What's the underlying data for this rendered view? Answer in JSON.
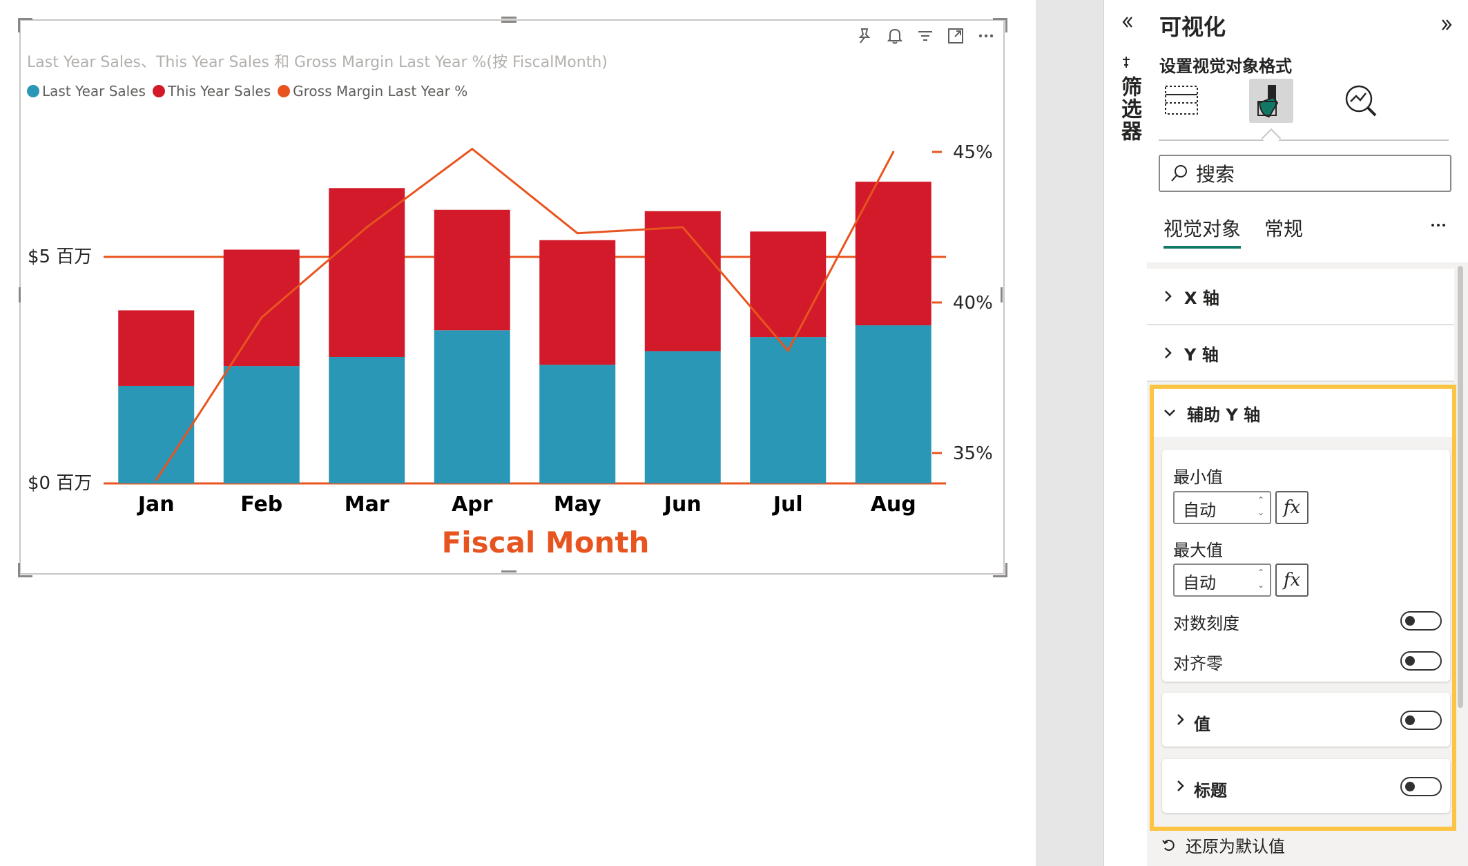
{
  "visual": {
    "title": "Last Year Sales、This Year Sales 和 Gross Margin Last Year %(按 FiscalMonth)",
    "header_icons": [
      "pin-icon",
      "bell-icon",
      "filter-icon",
      "focus-mode-icon",
      "more-options-icon"
    ],
    "legend": [
      {
        "label": "Last Year Sales",
        "color": "#2a97b6"
      },
      {
        "label": "This Year Sales",
        "color": "#d21a2a"
      },
      {
        "label": "Gross Margin Last Year %",
        "color": "#e8541f"
      }
    ]
  },
  "chart_data": {
    "type": "bar",
    "stacked": true,
    "categories": [
      "Jan",
      "Feb",
      "Mar",
      "Apr",
      "May",
      "Jun",
      "Jul",
      "Aug"
    ],
    "series": [
      {
        "name": "Last Year Sales",
        "values": [
          2.15,
          2.59,
          2.79,
          3.38,
          2.62,
          2.92,
          3.23,
          3.49
        ],
        "color": "#2a97b6"
      },
      {
        "name": "This Year Sales",
        "values": [
          1.67,
          2.57,
          3.73,
          2.66,
          2.75,
          3.09,
          2.33,
          3.17
        ],
        "color": "#d21a2a"
      }
    ],
    "line_series": [
      {
        "name": "Gross Margin Last Year %",
        "axis": "secondary",
        "values": [
          34.1,
          39.5,
          42.5,
          45.1,
          42.3,
          42.5,
          38.4,
          45.0
        ],
        "color": "#e8541f"
      }
    ],
    "xlabel": "Fiscal Month",
    "ylim": [
      0,
      8.75
    ],
    "y_ticks": [
      {
        "value": 0,
        "label": "$0 百万"
      },
      {
        "value": 5,
        "label": "$5 百万"
      }
    ],
    "y2lim": [
      33.25,
      48.3
    ],
    "y2_ticks": [
      {
        "value": 35,
        "label": "35%"
      },
      {
        "value": 40,
        "label": "40%"
      },
      {
        "value": 45,
        "label": "45%"
      }
    ],
    "gridlines": [
      0,
      5
    ],
    "gridline_color": "#e8541f",
    "xlabel_color": "#e8541f",
    "legend_position": "top-left"
  },
  "filters_pane": {
    "label": "筛选器"
  },
  "viz_pane": {
    "title": "可视化",
    "subtitle": "设置视觉对象格式",
    "format_icons": [
      "build-visual-icon",
      "format-visual-icon",
      "analytics-icon"
    ],
    "search_placeholder": "搜索",
    "tabs": [
      {
        "label": "视觉对象",
        "active": true
      },
      {
        "label": "常规",
        "active": false
      }
    ],
    "sections": {
      "x_axis": "X 轴",
      "y_axis": "Y 轴",
      "secondary_y": "辅助 Y 轴"
    },
    "secondary_y_card": {
      "min_label": "最小值",
      "min_value": "自动",
      "max_label": "最大值",
      "max_value": "自动",
      "fx_label": "fx",
      "log_scale": {
        "label": "对数刻度",
        "on": false
      },
      "align_zero": {
        "label": "对齐零",
        "on": false
      }
    },
    "values_card": {
      "label": "值",
      "on": false
    },
    "title_card": {
      "label": "标题",
      "on": false
    },
    "reset": "还原为默认值",
    "highlight_color": "#fbc443"
  }
}
